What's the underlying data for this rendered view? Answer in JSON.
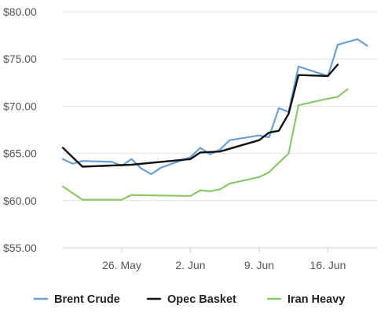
{
  "chart_data": {
    "type": "line",
    "title": "",
    "xlabel": "",
    "ylabel": "",
    "ylim": [
      55,
      80
    ],
    "y_ticks": [
      55,
      60,
      65,
      70,
      75,
      80
    ],
    "y_tick_labels": [
      "$55.00",
      "$60.00",
      "$65.00",
      "$70.00",
      "$75.00",
      "$80.00"
    ],
    "x_range": [
      "2019-05-20",
      "2019-06-21"
    ],
    "x_ticks": [
      "2019-05-26",
      "2019-06-02",
      "2019-06-09",
      "2019-06-16"
    ],
    "x_tick_labels": [
      "26. May",
      "2. Jun",
      "9. Jun",
      "16. Jun"
    ],
    "grid": true,
    "legend_position": "bottom",
    "series": [
      {
        "name": "Brent Crude",
        "color": "#6a9fd8",
        "points": [
          [
            "2019-05-20",
            64.4
          ],
          [
            "2019-05-21",
            63.9
          ],
          [
            "2019-05-22",
            64.2
          ],
          [
            "2019-05-25",
            64.1
          ],
          [
            "2019-05-26",
            63.7
          ],
          [
            "2019-05-27",
            64.4
          ],
          [
            "2019-05-28",
            63.4
          ],
          [
            "2019-05-29",
            62.8
          ],
          [
            "2019-05-30",
            63.5
          ],
          [
            "2019-06-02",
            64.6
          ],
          [
            "2019-06-03",
            65.6
          ],
          [
            "2019-06-04",
            64.9
          ],
          [
            "2019-06-05",
            65.4
          ],
          [
            "2019-06-06",
            66.4
          ],
          [
            "2019-06-09",
            66.9
          ],
          [
            "2019-06-10",
            66.7
          ],
          [
            "2019-06-11",
            69.8
          ],
          [
            "2019-06-12",
            69.4
          ],
          [
            "2019-06-13",
            74.2
          ],
          [
            "2019-06-16",
            73.2
          ],
          [
            "2019-06-17",
            76.5
          ],
          [
            "2019-06-19",
            77.1
          ],
          [
            "2019-06-20",
            76.4
          ]
        ]
      },
      {
        "name": "Opec Basket",
        "color": "#111111",
        "points": [
          [
            "2019-05-20",
            65.6
          ],
          [
            "2019-05-22",
            63.6
          ],
          [
            "2019-05-27",
            63.8
          ],
          [
            "2019-06-02",
            64.4
          ],
          [
            "2019-06-03",
            65.1
          ],
          [
            "2019-06-05",
            65.2
          ],
          [
            "2019-06-09",
            66.4
          ],
          [
            "2019-06-10",
            67.2
          ],
          [
            "2019-06-11",
            67.4
          ],
          [
            "2019-06-12",
            69.2
          ],
          [
            "2019-06-13",
            73.3
          ],
          [
            "2019-06-16",
            73.2
          ],
          [
            "2019-06-17",
            74.4
          ]
        ]
      },
      {
        "name": "Iran Heavy",
        "color": "#8cc76a",
        "points": [
          [
            "2019-05-20",
            61.5
          ],
          [
            "2019-05-22",
            60.1
          ],
          [
            "2019-05-26",
            60.1
          ],
          [
            "2019-05-27",
            60.6
          ],
          [
            "2019-06-02",
            60.5
          ],
          [
            "2019-06-03",
            61.1
          ],
          [
            "2019-06-04",
            61.0
          ],
          [
            "2019-06-05",
            61.2
          ],
          [
            "2019-06-06",
            61.8
          ],
          [
            "2019-06-09",
            62.5
          ],
          [
            "2019-06-10",
            63.0
          ],
          [
            "2019-06-11",
            64.0
          ],
          [
            "2019-06-12",
            65.0
          ],
          [
            "2019-06-13",
            70.1
          ],
          [
            "2019-06-16",
            70.8
          ],
          [
            "2019-06-17",
            71.0
          ],
          [
            "2019-06-18",
            71.8
          ]
        ]
      }
    ]
  }
}
